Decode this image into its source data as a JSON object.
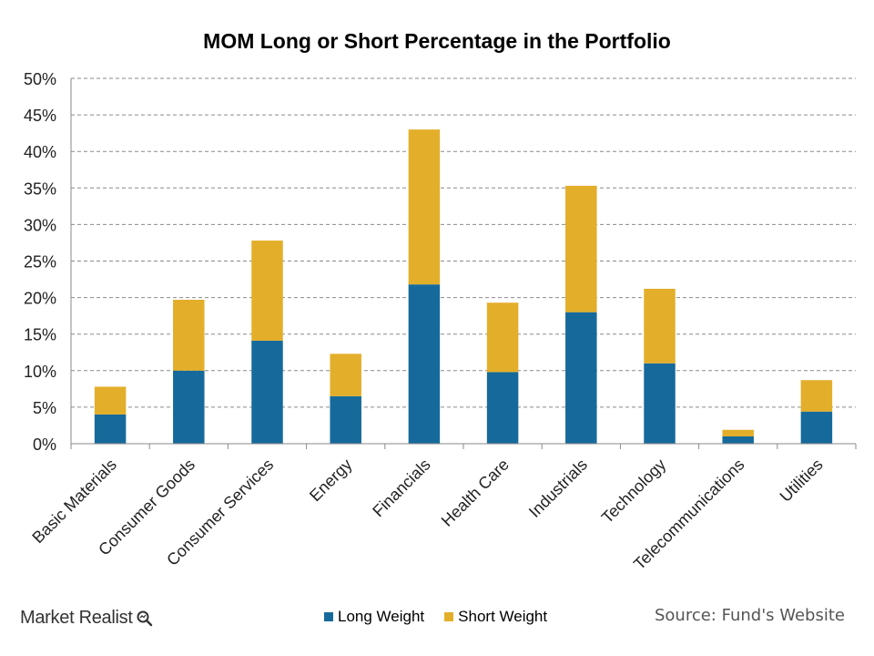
{
  "brand": {
    "name": "Market Realist",
    "icon": "magnifier-icon"
  },
  "source": "Source: Fund's Website",
  "chart_data": {
    "type": "bar",
    "stacked": true,
    "title": "MOM Long or Short Percentage in the Portfolio",
    "xlabel": "",
    "ylabel": "",
    "categories": [
      "Basic Materials",
      "Consumer Goods",
      "Consumer Services",
      "Energy",
      "Financials",
      "Health Care",
      "Industrials",
      "Technology",
      "Telecommunications",
      "Utilities"
    ],
    "series": [
      {
        "name": "Long Weight",
        "color": "#166a9b",
        "values": [
          4.0,
          10.0,
          14.1,
          6.5,
          21.8,
          9.8,
          18.0,
          11.0,
          1.0,
          4.4
        ]
      },
      {
        "name": "Short Weight",
        "color": "#e3ae29",
        "values": [
          3.8,
          9.7,
          13.7,
          5.8,
          21.2,
          9.5,
          17.3,
          10.2,
          0.9,
          4.3
        ]
      }
    ],
    "ylim": [
      0,
      50
    ],
    "yticks": [
      0,
      5,
      10,
      15,
      20,
      25,
      30,
      35,
      40,
      45,
      50
    ],
    "ytick_labels": [
      "0%",
      "5%",
      "10%",
      "15%",
      "20%",
      "25%",
      "30%",
      "35%",
      "40%",
      "45%",
      "50%"
    ],
    "grid": true,
    "legend_position": "bottom"
  }
}
